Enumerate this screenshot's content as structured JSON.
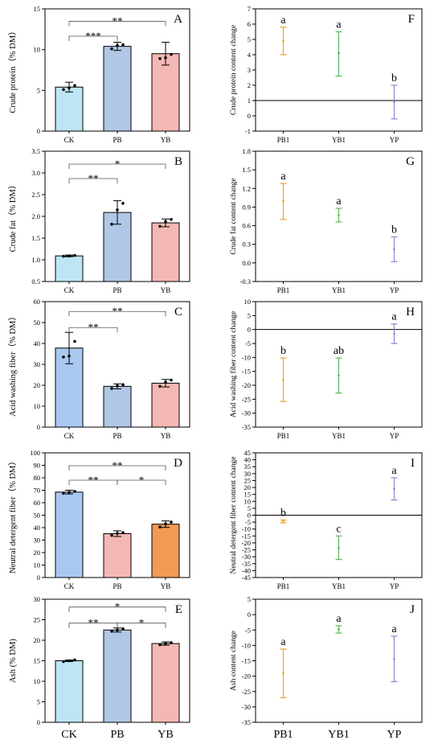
{
  "chart_data": [
    {
      "id": "A",
      "panel_label": "A",
      "type": "bar",
      "ylabel": "Crude protein（% DM）",
      "ylim": [
        0,
        15
      ],
      "yticks": [
        0,
        5,
        10,
        15
      ],
      "categories": [
        "CK",
        "PB",
        "YB"
      ],
      "values": [
        5.4,
        10.4,
        9.5
      ],
      "errors": [
        0.6,
        0.5,
        1.4
      ],
      "points": [
        [
          5.1,
          5.3,
          5.6
        ],
        [
          10.1,
          10.5,
          10.6
        ],
        [
          8.9,
          9.0,
          9.4
        ]
      ],
      "colors": [
        "#bde5f5",
        "#b0c8e6",
        "#f4b8b4"
      ],
      "brackets": [
        {
          "from": 0,
          "to": 1,
          "level": 0,
          "label": "***"
        },
        {
          "from": 0,
          "to": 2,
          "level": 1,
          "label": "**"
        }
      ]
    },
    {
      "id": "B",
      "panel_label": "B",
      "type": "bar",
      "ylabel": "Crude fat（% DM）",
      "ylim": [
        0.5,
        3.5
      ],
      "yticks": [
        0.5,
        1.0,
        1.5,
        2.0,
        2.5,
        3.0,
        3.5
      ],
      "categories": [
        "CK",
        "PB",
        "YB"
      ],
      "values": [
        1.09,
        2.09,
        1.85
      ],
      "errors": [
        0.02,
        0.27,
        0.09
      ],
      "points": [
        [
          1.08,
          1.09,
          1.1
        ],
        [
          1.82,
          2.15,
          2.3
        ],
        [
          1.77,
          1.88,
          1.93
        ]
      ],
      "colors": [
        "#bde5f5",
        "#b0c8e6",
        "#f4b8b4"
      ],
      "brackets": [
        {
          "from": 0,
          "to": 1,
          "level": 0,
          "label": "**"
        },
        {
          "from": 0,
          "to": 2,
          "level": 1,
          "label": "*"
        }
      ]
    },
    {
      "id": "C",
      "panel_label": "C",
      "type": "bar",
      "ylabel": "Acid washing fiber（% DM）",
      "ylim": [
        0,
        60
      ],
      "yticks": [
        0,
        10,
        20,
        30,
        40,
        50,
        60
      ],
      "categories": [
        "CK",
        "PB",
        "YB"
      ],
      "values": [
        37.8,
        19.5,
        21.0
      ],
      "errors": [
        7.5,
        1.2,
        1.8
      ],
      "points": [
        [
          33.5,
          34.0,
          41.0
        ],
        [
          18.5,
          19.8,
          20.3
        ],
        [
          19.5,
          21.5,
          22.5
        ]
      ],
      "colors": [
        "#a9c8f0",
        "#b0c8e6",
        "#f4b8b4"
      ],
      "brackets": [
        {
          "from": 0,
          "to": 1,
          "level": 0,
          "label": "**"
        },
        {
          "from": 0,
          "to": 2,
          "level": 1,
          "label": "**"
        }
      ]
    },
    {
      "id": "D",
      "panel_label": "D",
      "type": "bar",
      "ylabel": "Neutral detergent fiber（% DM）",
      "ylim": [
        0,
        100
      ],
      "yticks": [
        0,
        10,
        20,
        30,
        40,
        50,
        60,
        70,
        80,
        90,
        100
      ],
      "categories": [
        "CK",
        "PB",
        "YB"
      ],
      "values": [
        68.5,
        35.2,
        42.8
      ],
      "errors": [
        1.5,
        2.3,
        2.6
      ],
      "points": [
        [
          67.5,
          68.3,
          69.2
        ],
        [
          33.8,
          35.5,
          36.0
        ],
        [
          40.5,
          43.0,
          44.5
        ]
      ],
      "colors": [
        "#a9c8f0",
        "#f4b8b4",
        "#f09a55"
      ],
      "brackets": [
        {
          "from": 0,
          "to": 1,
          "level": 0,
          "label": "**"
        },
        {
          "from": 1,
          "to": 2,
          "level": 0,
          "label": "*"
        },
        {
          "from": 0,
          "to": 2,
          "level": 1,
          "label": "**"
        }
      ]
    },
    {
      "id": "E",
      "panel_label": "E",
      "type": "bar",
      "ylabel": "Ash (% DM)",
      "ylim": [
        0,
        30
      ],
      "yticks": [
        0,
        5,
        10,
        15,
        20,
        25,
        30
      ],
      "categories": [
        "CK",
        "PB",
        "YB"
      ],
      "values": [
        15.0,
        22.5,
        19.2
      ],
      "errors": [
        0.2,
        0.5,
        0.4
      ],
      "points": [
        [
          14.8,
          15.0,
          15.2
        ],
        [
          22.2,
          22.5,
          22.8
        ],
        [
          18.9,
          19.2,
          19.4
        ]
      ],
      "colors": [
        "#bde5f5",
        "#b0c8e6",
        "#f4b8b4"
      ],
      "brackets": [
        {
          "from": 0,
          "to": 1,
          "level": 0,
          "label": "**"
        },
        {
          "from": 1,
          "to": 2,
          "level": 0,
          "label": "*"
        },
        {
          "from": 0,
          "to": 2,
          "level": 1,
          "label": "*"
        }
      ]
    },
    {
      "id": "F",
      "panel_label": "F",
      "type": "scatter",
      "ylabel": "Crude protein content change",
      "ylim": [
        -1,
        7
      ],
      "yticks": [
        -1,
        0,
        1,
        2,
        3,
        4,
        5,
        6,
        7
      ],
      "refline": 1,
      "categories": [
        "PB1",
        "YB1",
        "YP"
      ],
      "values": [
        4.9,
        4.1,
        0.9
      ],
      "lower": [
        4.0,
        2.6,
        -0.2
      ],
      "upper": [
        5.8,
        5.5,
        2.0
      ],
      "letters": [
        "a",
        "a",
        "b"
      ],
      "colors": [
        "#f0a030",
        "#5cb85c",
        "#8a8ad0"
      ]
    },
    {
      "id": "G",
      "panel_label": "G",
      "type": "scatter",
      "ylabel": "Crude fat content change",
      "ylim": [
        -0.3,
        1.8
      ],
      "yticks": [
        -0.3,
        0.0,
        0.3,
        0.6,
        0.9,
        1.2,
        1.5,
        1.8
      ],
      "refline": null,
      "categories": [
        "PB1",
        "YB1",
        "YP"
      ],
      "values": [
        1.0,
        0.77,
        0.22
      ],
      "lower": [
        0.7,
        0.66,
        0.02
      ],
      "upper": [
        1.28,
        0.88,
        0.42
      ],
      "letters": [
        "a",
        "a",
        "b"
      ],
      "colors": [
        "#f0a030",
        "#5cb85c",
        "#8a8ad0"
      ]
    },
    {
      "id": "H",
      "panel_label": "H",
      "type": "scatter",
      "ylabel": "Acid washing fiber content change",
      "ylim": [
        -35,
        10
      ],
      "yticks": [
        -35,
        -30,
        -25,
        -20,
        -15,
        -10,
        -5,
        0,
        5,
        10
      ],
      "refline": 0,
      "categories": [
        "PB1",
        "YB1",
        "YP"
      ],
      "values": [
        -18.0,
        -16.5,
        -1.5
      ],
      "lower": [
        -25.8,
        -22.8,
        -5.0
      ],
      "upper": [
        -10.2,
        -10.2,
        2.0
      ],
      "letters": [
        "b",
        "ab",
        "a"
      ],
      "colors": [
        "#f0a030",
        "#5cb85c",
        "#8a8ad0"
      ]
    },
    {
      "id": "I",
      "panel_label": "I",
      "type": "scatter",
      "ylabel": "Neutral detergent fiber content change",
      "ylim": [
        -45,
        45
      ],
      "yticks": [
        -45,
        -40,
        -35,
        -30,
        -25,
        -20,
        -15,
        -10,
        -5,
        0,
        5,
        10,
        15,
        20,
        25,
        30,
        35,
        40,
        45
      ],
      "refline": 0,
      "categories": [
        "PB1",
        "YB1",
        "YP"
      ],
      "values": [
        -4.5,
        -23.5,
        19.0
      ],
      "lower": [
        -5.5,
        -32.0,
        11.0
      ],
      "upper": [
        -3.5,
        -15.0,
        27.0
      ],
      "letters": [
        "b",
        "c",
        "a"
      ],
      "colors": [
        "#f0a030",
        "#5cb85c",
        "#8a8ad0"
      ]
    },
    {
      "id": "J",
      "panel_label": "J",
      "type": "scatter",
      "ylabel": "Ash content change",
      "ylim": [
        -35,
        5
      ],
      "yticks": [
        -35,
        -30,
        -25,
        -20,
        -15,
        -10,
        -5,
        0,
        5
      ],
      "refline": null,
      "categories": [
        "PB1",
        "YB1",
        "YP"
      ],
      "values": [
        -19.0,
        -4.8,
        -14.5
      ],
      "lower": [
        -27.0,
        -6.0,
        -21.8
      ],
      "upper": [
        -11.2,
        -3.6,
        -7.0
      ],
      "letters": [
        "a",
        "a",
        "a"
      ],
      "colors": [
        "#f0a030",
        "#5cb85c",
        "#8a8ad0"
      ]
    }
  ]
}
